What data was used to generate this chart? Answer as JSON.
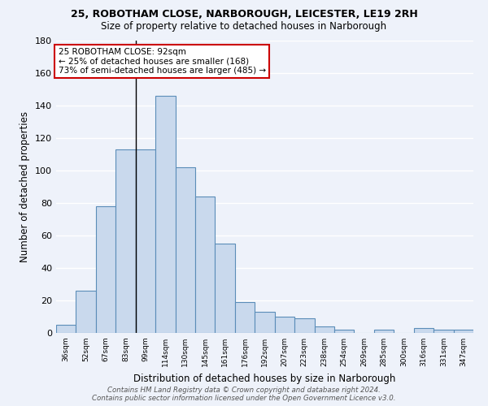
{
  "title1": "25, ROBOTHAM CLOSE, NARBOROUGH, LEICESTER, LE19 2RH",
  "title2": "Size of property relative to detached houses in Narborough",
  "xlabel": "Distribution of detached houses by size in Narborough",
  "ylabel": "Number of detached properties",
  "categories": [
    "36sqm",
    "52sqm",
    "67sqm",
    "83sqm",
    "99sqm",
    "114sqm",
    "130sqm",
    "145sqm",
    "161sqm",
    "176sqm",
    "192sqm",
    "207sqm",
    "223sqm",
    "238sqm",
    "254sqm",
    "269sqm",
    "285sqm",
    "300sqm",
    "316sqm",
    "331sqm",
    "347sqm"
  ],
  "values": [
    5,
    26,
    78,
    113,
    113,
    146,
    102,
    84,
    55,
    19,
    13,
    10,
    9,
    4,
    2,
    0,
    2,
    0,
    3,
    2,
    2
  ],
  "bar_color": "#c9d9ed",
  "bar_edge_color": "#5b8db8",
  "background_color": "#eef2fa",
  "grid_color": "#ffffff",
  "vline_color": "#000000",
  "annotation_text": "25 ROBOTHAM CLOSE: 92sqm\n← 25% of detached houses are smaller (168)\n73% of semi-detached houses are larger (485) →",
  "annotation_box_color": "#ffffff",
  "annotation_border_color": "#cc0000",
  "footer": "Contains HM Land Registry data © Crown copyright and database right 2024.\nContains public sector information licensed under the Open Government Licence v3.0.",
  "ylim": [
    0,
    180
  ],
  "yticks": [
    0,
    20,
    40,
    60,
    80,
    100,
    120,
    140,
    160,
    180
  ],
  "vline_x": 3.5
}
